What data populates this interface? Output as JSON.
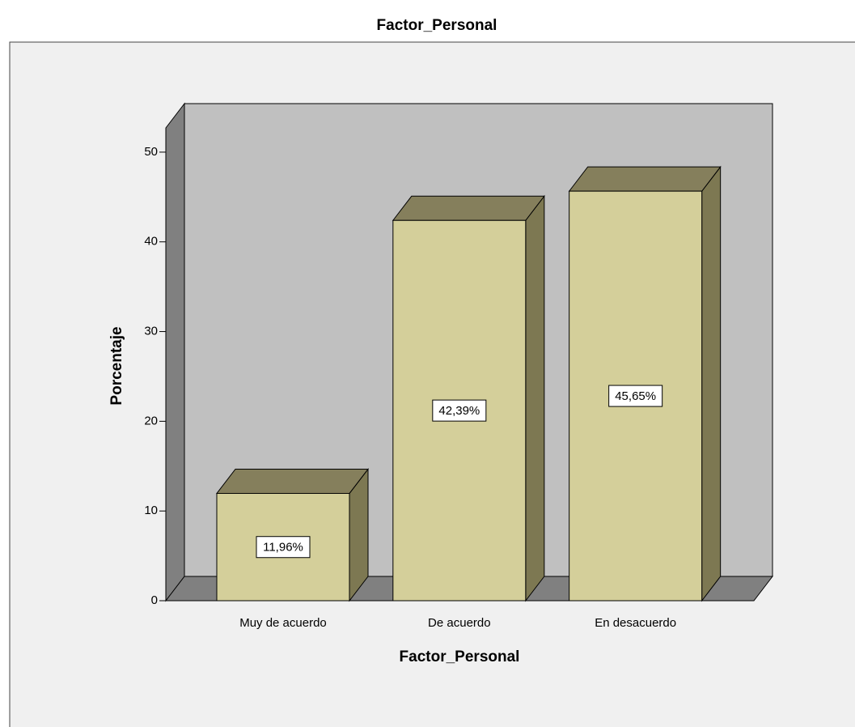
{
  "chart_data": {
    "type": "bar3d",
    "title": "Factor_Personal",
    "x_label": "Factor_Personal",
    "y_label": "Porcentaje",
    "categories": [
      "Muy de acuerdo",
      "De acuerdo",
      "En desacuerdo"
    ],
    "values": [
      11.96,
      42.39,
      45.65
    ],
    "value_labels": [
      "11,96%",
      "42,39%",
      "45,65%"
    ],
    "color": "#d4cf9a",
    "ylim": [
      0,
      52.7
    ],
    "yticks": [
      0,
      10,
      20,
      30,
      40,
      50
    ]
  }
}
